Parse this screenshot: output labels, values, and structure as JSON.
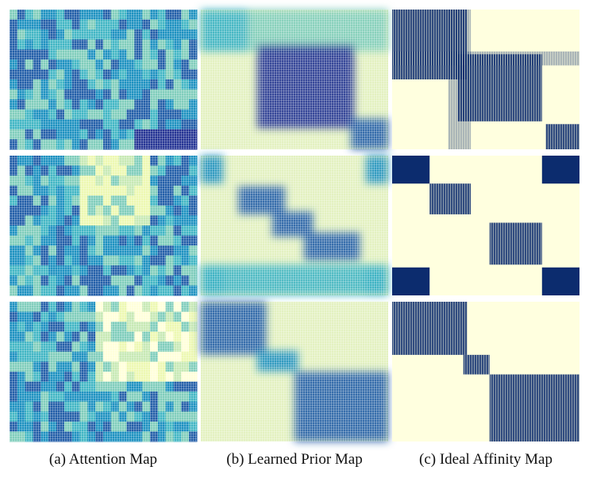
{
  "captions": [
    "(a) Attention Map",
    "(b) Learned Prior Map",
    "(c) Ideal Affinity Map"
  ]
}
